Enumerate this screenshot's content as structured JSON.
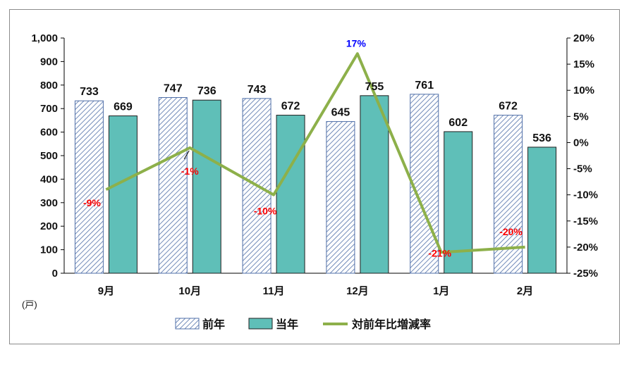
{
  "chart_data": {
    "type": "bar",
    "categories": [
      "9月",
      "10月",
      "11月",
      "12月",
      "1月",
      "2月"
    ],
    "series": [
      {
        "name": "前年",
        "type": "bar",
        "pattern": "hatched",
        "color": "#4f6fa8",
        "values": [
          733,
          747,
          743,
          645,
          761,
          672
        ]
      },
      {
        "name": "当年",
        "type": "bar",
        "color": "#5fbfb8",
        "values": [
          669,
          736,
          672,
          755,
          602,
          536
        ]
      },
      {
        "name": "対前年比増減率",
        "type": "line",
        "axis": "right",
        "color": "#8db04a",
        "values": [
          -9,
          -1,
          -10,
          17,
          -21,
          -20
        ]
      }
    ],
    "point_labels": [
      "-9%",
      "-1%",
      "-10%",
      "17%",
      "-21%",
      "-20%"
    ],
    "point_label_colors": [
      "#ff0000",
      "#ff0000",
      "#ff0000",
      "#0000ff",
      "#ff0000",
      "#ff0000"
    ],
    "y_left": {
      "ylim": [
        0,
        1000
      ],
      "ticks": [
        "0",
        "100",
        "200",
        "300",
        "400",
        "500",
        "600",
        "700",
        "800",
        "900",
        "1,000"
      ]
    },
    "y_right": {
      "ylim": [
        -25,
        20
      ],
      "ticks": [
        "-25%",
        "-20%",
        "-15%",
        "-10%",
        "-5%",
        "0%",
        "5%",
        "10%",
        "15%",
        "20%"
      ]
    },
    "unit_label": "(戸)",
    "legend_position": "bottom",
    "grid": false
  }
}
